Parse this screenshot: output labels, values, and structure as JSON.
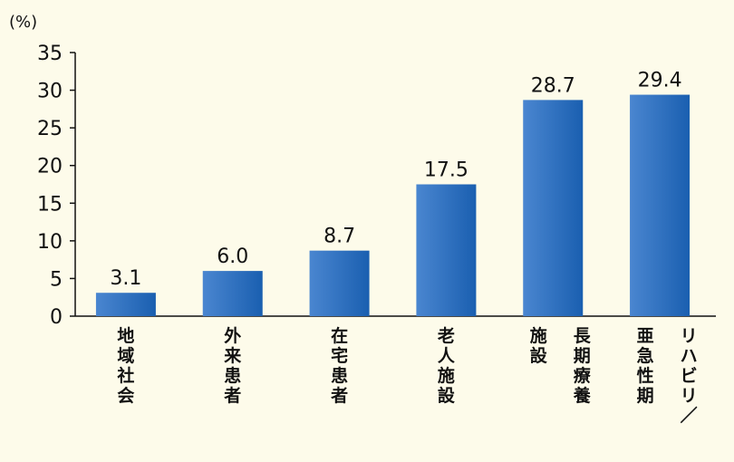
{
  "chart_data": {
    "type": "bar",
    "unit_label": "(%)",
    "ylim": [
      0,
      35
    ],
    "yticks": [
      "0",
      "5",
      "10",
      "15",
      "20",
      "25",
      "30",
      "35"
    ],
    "categories": [
      [
        "地域社会"
      ],
      [
        "外来患者"
      ],
      [
        "在宅患者"
      ],
      [
        "老人施設"
      ],
      [
        "施設",
        "長期療養"
      ],
      [
        "亜急性期",
        "リハビリ／"
      ]
    ],
    "values": [
      3.1,
      6.0,
      8.7,
      17.5,
      28.7,
      29.4
    ],
    "value_labels": [
      "3.1",
      "6.0",
      "8.7",
      "17.5",
      "28.7",
      "29.4"
    ],
    "bar_color_light": "#4a86d0",
    "bar_color_dark": "#1a5fb0",
    "grid": false
  }
}
